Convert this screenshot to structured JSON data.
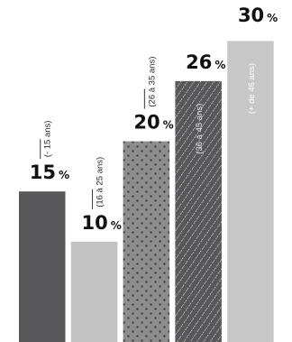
{
  "chart_data": {
    "type": "bar",
    "title": "",
    "xlabel": "",
    "ylabel": "",
    "ylim": [
      0,
      30
    ],
    "grid": false,
    "categories": [
      "(- 15 ans)",
      "(16 à 25 ans)",
      "(26 à 35 ans)",
      "(36 à 45 ans)",
      "(+ de 46 ans)"
    ],
    "values": [
      15,
      10,
      20,
      26,
      30
    ],
    "value_labels": [
      "15",
      "10",
      "20",
      "26",
      "30"
    ],
    "value_suffix": "%",
    "bar_fills": [
      "#58585a",
      "#c2c2c2",
      "#8d8d8d",
      "#58585a",
      "#c7c7c7"
    ],
    "bar_patterns": [
      "solid",
      "solid",
      "dots",
      "diagonal-lines",
      "solid"
    ]
  }
}
